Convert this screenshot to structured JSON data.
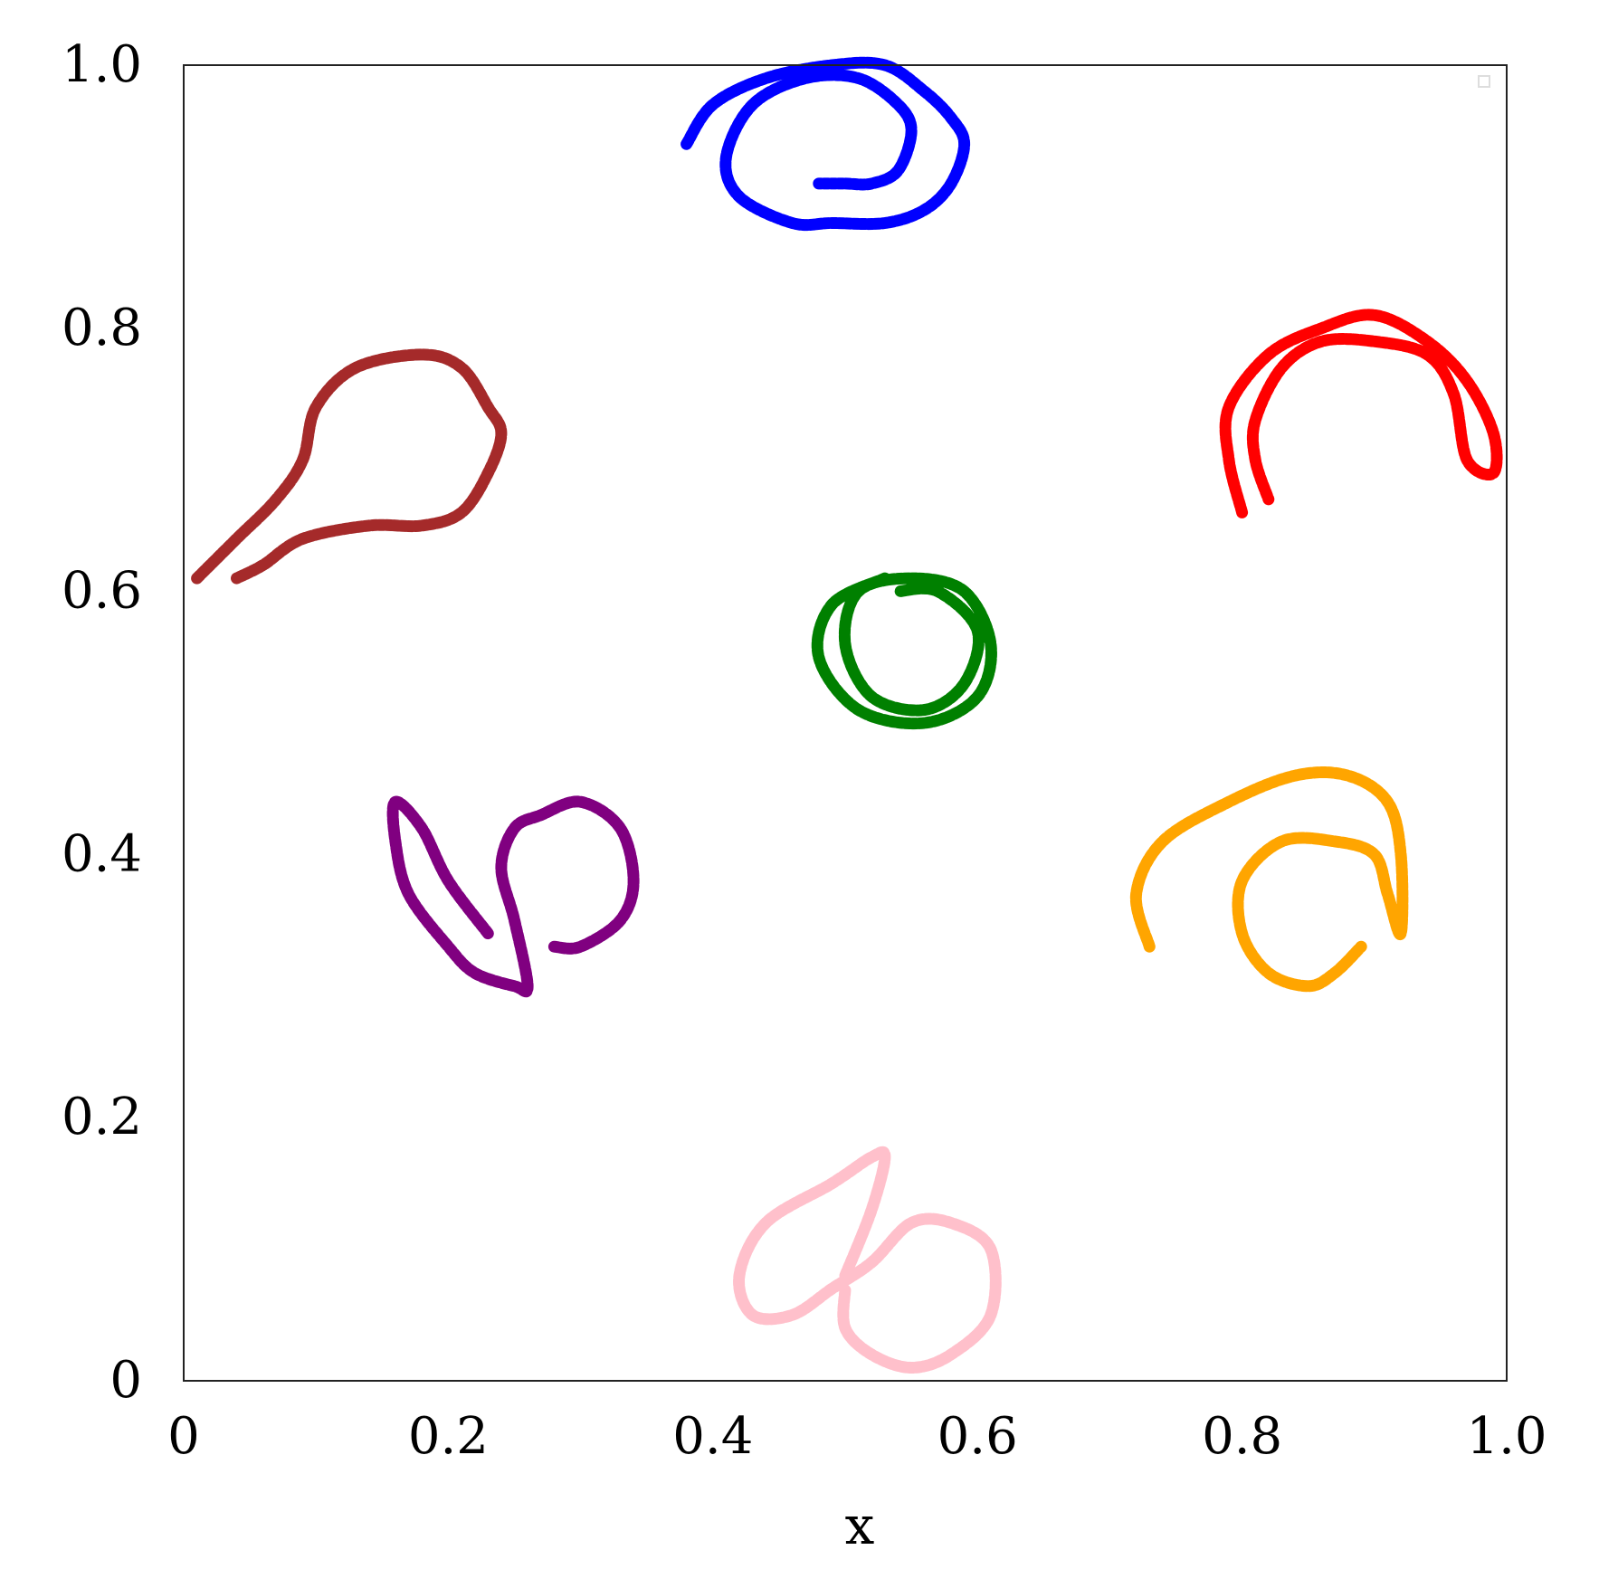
{
  "chart_data": {
    "type": "scatter",
    "title": "",
    "xlabel": "x",
    "ylabel": "",
    "xlim": [
      0,
      1
    ],
    "ylim": [
      0,
      1
    ],
    "grid": false,
    "x_ticks": [
      "0",
      "0.2",
      "0.4",
      "0.6",
      "0.8",
      "1.0"
    ],
    "y_ticks": [
      "0",
      "0.2",
      "0.4",
      "0.6",
      "0.8",
      "1.0"
    ],
    "series": [
      {
        "color": "#0000ff",
        "points": [
          [
            0.38,
            0.94
          ],
          [
            0.4,
            0.97
          ],
          [
            0.44,
            0.99
          ],
          [
            0.49,
            1.0
          ],
          [
            0.53,
            1.0
          ],
          [
            0.56,
            0.98
          ],
          [
            0.58,
            0.96
          ],
          [
            0.59,
            0.94
          ],
          [
            0.58,
            0.91
          ],
          [
            0.56,
            0.89
          ],
          [
            0.53,
            0.88
          ],
          [
            0.49,
            0.88
          ],
          [
            0.46,
            0.88
          ],
          [
            0.42,
            0.9
          ],
          [
            0.41,
            0.93
          ],
          [
            0.43,
            0.97
          ],
          [
            0.47,
            0.99
          ],
          [
            0.51,
            0.99
          ],
          [
            0.54,
            0.97
          ],
          [
            0.55,
            0.95
          ],
          [
            0.54,
            0.92
          ],
          [
            0.52,
            0.91
          ],
          [
            0.5,
            0.91
          ],
          [
            0.48,
            0.91
          ]
        ]
      },
      {
        "color": "#ff0000",
        "points": [
          [
            0.8,
            0.66
          ],
          [
            0.79,
            0.7
          ],
          [
            0.79,
            0.74
          ],
          [
            0.82,
            0.78
          ],
          [
            0.86,
            0.8
          ],
          [
            0.9,
            0.81
          ],
          [
            0.94,
            0.79
          ],
          [
            0.97,
            0.76
          ],
          [
            0.99,
            0.72
          ],
          [
            0.99,
            0.69
          ],
          [
            0.97,
            0.7
          ],
          [
            0.96,
            0.75
          ],
          [
            0.94,
            0.78
          ],
          [
            0.9,
            0.79
          ],
          [
            0.86,
            0.79
          ],
          [
            0.83,
            0.77
          ],
          [
            0.81,
            0.73
          ],
          [
            0.81,
            0.7
          ],
          [
            0.82,
            0.67
          ]
        ]
      },
      {
        "color": "#a52a2a",
        "points": [
          [
            0.01,
            0.61
          ],
          [
            0.04,
            0.64
          ],
          [
            0.07,
            0.67
          ],
          [
            0.09,
            0.7
          ],
          [
            0.1,
            0.74
          ],
          [
            0.13,
            0.77
          ],
          [
            0.18,
            0.78
          ],
          [
            0.21,
            0.77
          ],
          [
            0.23,
            0.74
          ],
          [
            0.24,
            0.72
          ],
          [
            0.23,
            0.69
          ],
          [
            0.21,
            0.66
          ],
          [
            0.18,
            0.65
          ],
          [
            0.14,
            0.65
          ],
          [
            0.09,
            0.64
          ],
          [
            0.06,
            0.62
          ],
          [
            0.04,
            0.61
          ]
        ]
      },
      {
        "color": "#008000",
        "points": [
          [
            0.53,
            0.61
          ],
          [
            0.49,
            0.59
          ],
          [
            0.48,
            0.55
          ],
          [
            0.51,
            0.51
          ],
          [
            0.56,
            0.5
          ],
          [
            0.6,
            0.52
          ],
          [
            0.61,
            0.56
          ],
          [
            0.59,
            0.6
          ],
          [
            0.55,
            0.61
          ],
          [
            0.51,
            0.6
          ],
          [
            0.5,
            0.56
          ],
          [
            0.52,
            0.52
          ],
          [
            0.56,
            0.51
          ],
          [
            0.59,
            0.53
          ],
          [
            0.6,
            0.57
          ],
          [
            0.57,
            0.6
          ],
          [
            0.54,
            0.6
          ]
        ]
      },
      {
        "color": "#800080",
        "points": [
          [
            0.23,
            0.34
          ],
          [
            0.2,
            0.38
          ],
          [
            0.18,
            0.42
          ],
          [
            0.16,
            0.44
          ],
          [
            0.16,
            0.41
          ],
          [
            0.17,
            0.37
          ],
          [
            0.2,
            0.33
          ],
          [
            0.22,
            0.31
          ],
          [
            0.25,
            0.3
          ],
          [
            0.26,
            0.3
          ],
          [
            0.25,
            0.35
          ],
          [
            0.24,
            0.39
          ],
          [
            0.25,
            0.42
          ],
          [
            0.27,
            0.43
          ],
          [
            0.3,
            0.44
          ],
          [
            0.33,
            0.42
          ],
          [
            0.34,
            0.38
          ],
          [
            0.33,
            0.35
          ],
          [
            0.3,
            0.33
          ],
          [
            0.28,
            0.33
          ]
        ]
      },
      {
        "color": "#ffa500",
        "points": [
          [
            0.73,
            0.33
          ],
          [
            0.72,
            0.37
          ],
          [
            0.74,
            0.41
          ],
          [
            0.79,
            0.44
          ],
          [
            0.84,
            0.46
          ],
          [
            0.88,
            0.46
          ],
          [
            0.91,
            0.44
          ],
          [
            0.92,
            0.4
          ],
          [
            0.92,
            0.34
          ],
          [
            0.91,
            0.37
          ],
          [
            0.9,
            0.4
          ],
          [
            0.87,
            0.41
          ],
          [
            0.83,
            0.41
          ],
          [
            0.8,
            0.38
          ],
          [
            0.8,
            0.34
          ],
          [
            0.82,
            0.31
          ],
          [
            0.85,
            0.3
          ],
          [
            0.87,
            0.31
          ],
          [
            0.89,
            0.33
          ]
        ]
      },
      {
        "color": "#ffc0cb",
        "points": [
          [
            0.5,
            0.08
          ],
          [
            0.52,
            0.13
          ],
          [
            0.53,
            0.17
          ],
          [
            0.52,
            0.17
          ],
          [
            0.49,
            0.15
          ],
          [
            0.44,
            0.12
          ],
          [
            0.42,
            0.08
          ],
          [
            0.43,
            0.05
          ],
          [
            0.46,
            0.05
          ],
          [
            0.49,
            0.07
          ],
          [
            0.52,
            0.09
          ],
          [
            0.55,
            0.12
          ],
          [
            0.58,
            0.12
          ],
          [
            0.61,
            0.1
          ],
          [
            0.61,
            0.05
          ],
          [
            0.58,
            0.02
          ],
          [
            0.55,
            0.01
          ],
          [
            0.52,
            0.02
          ],
          [
            0.5,
            0.04
          ],
          [
            0.5,
            0.07
          ]
        ]
      }
    ]
  }
}
